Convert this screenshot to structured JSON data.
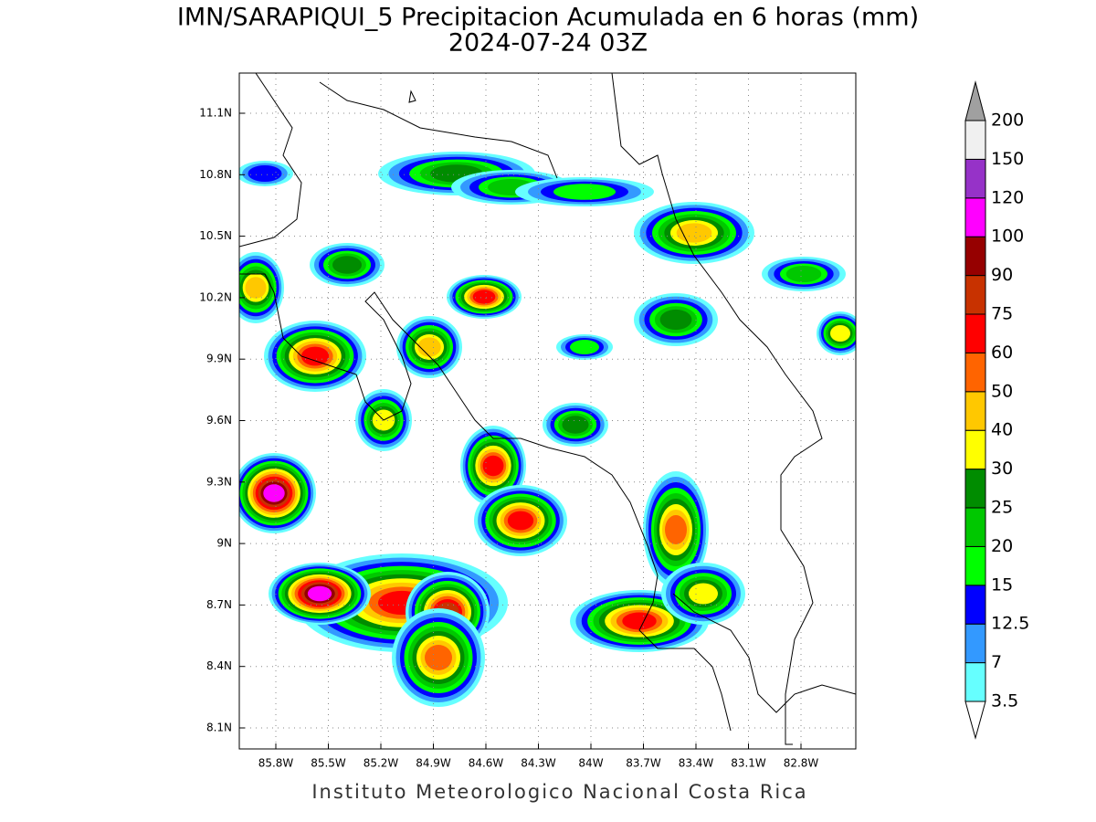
{
  "title": "IMN/SARAPIQUI_5 Precipitacion Acumulada en 6 horas (mm)",
  "subtitle": "2024-07-24 03Z",
  "footer": "Instituto Meteorologico Nacional Costa Rica",
  "map": {
    "lat_ticks": [
      {
        "value": 11.1,
        "label": "11.1N"
      },
      {
        "value": 10.8,
        "label": "10.8N"
      },
      {
        "value": 10.5,
        "label": "10.5N"
      },
      {
        "value": 10.2,
        "label": "10.2N"
      },
      {
        "value": 9.9,
        "label": "9.9N"
      },
      {
        "value": 9.6,
        "label": "9.6N"
      },
      {
        "value": 9.3,
        "label": "9.3N"
      },
      {
        "value": 9,
        "label": "9N"
      },
      {
        "value": 8.7,
        "label": "8.7N"
      },
      {
        "value": 8.4,
        "label": "8.4N"
      },
      {
        "value": 8.1,
        "label": "8.1N"
      }
    ],
    "lon_ticks": [
      {
        "value": -85.8,
        "label": "85.8W"
      },
      {
        "value": -85.5,
        "label": "85.5W"
      },
      {
        "value": -85.2,
        "label": "85.2W"
      },
      {
        "value": -84.9,
        "label": "84.9W"
      },
      {
        "value": -84.6,
        "label": "84.6W"
      },
      {
        "value": -84.3,
        "label": "84.3W"
      },
      {
        "value": -84,
        "label": "84W"
      },
      {
        "value": -83.7,
        "label": "83.7W"
      },
      {
        "value": -83.4,
        "label": "83.4W"
      },
      {
        "value": -83.1,
        "label": "83.1W"
      },
      {
        "value": -82.8,
        "label": "82.8W"
      }
    ],
    "grid": true
  },
  "colorbar": {
    "levels": [
      3.5,
      7,
      12.5,
      15,
      20,
      25,
      30,
      40,
      50,
      60,
      75,
      90,
      100,
      120,
      150,
      200
    ],
    "colors": [
      "#ffffff",
      "#66ffff",
      "#3399ff",
      "#0000ff",
      "#00ff00",
      "#00c800",
      "#008c00",
      "#ffff00",
      "#ffc800",
      "#ff6400",
      "#ff0000",
      "#c83200",
      "#960000",
      "#ff00ff",
      "#9632c8",
      "#f0f0f0",
      "#a0a0a0"
    ]
  }
}
